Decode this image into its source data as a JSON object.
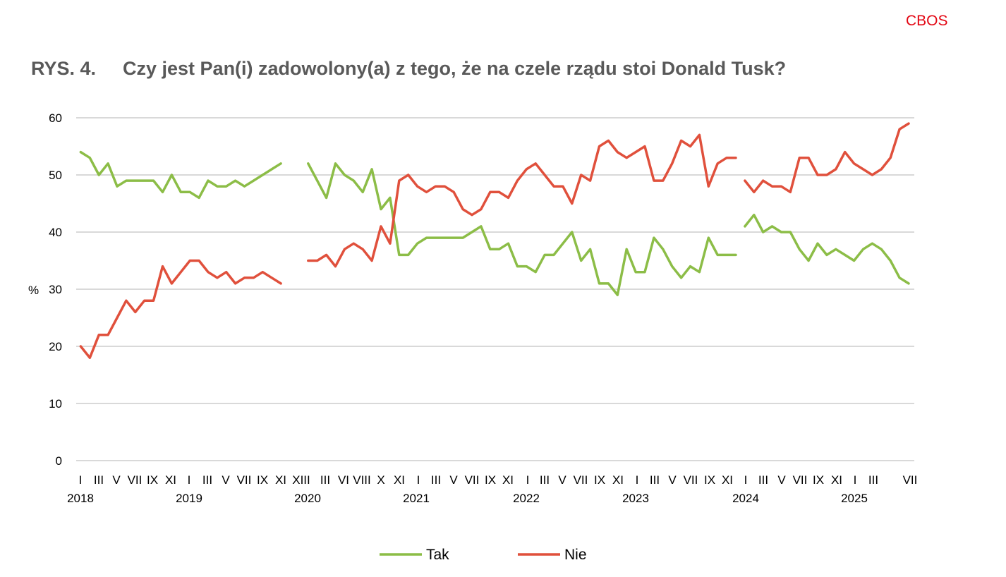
{
  "brand": "CBOS",
  "figure_number": "RYS. 4.",
  "title": "Czy jest Pan(i) zadowolony(a) z tego, że na czele rządu stoi Donald Tusk?",
  "chart_data": {
    "type": "line",
    "title": "Czy jest Pan(i) zadowolony(a) z tego, że na czele rządu stoi Donald Tusk?",
    "ylabel": "%",
    "xlabel": "",
    "ylim": [
      0,
      60
    ],
    "yticks": [
      0,
      10,
      20,
      30,
      40,
      50,
      60
    ],
    "grid": "horizontal",
    "legend_position": "bottom",
    "month_labels": [
      "I",
      "III",
      "V",
      "VII",
      "IX",
      "XI",
      "I",
      "III",
      "V",
      "VII",
      "IX",
      "XI",
      "XIII",
      "III",
      "VI",
      "VIII",
      "X",
      "XI",
      "I",
      "III",
      "V",
      "VII",
      "IX",
      "XI",
      "I",
      "III",
      "V",
      "VII",
      "IX",
      "XI",
      "I",
      "III",
      "V",
      "VII",
      "IX",
      "XI",
      "I",
      "III",
      "V",
      "VII",
      "IX",
      "XI",
      "I",
      "III",
      "VII"
    ],
    "year_labels": [
      "2018",
      "2019",
      "2020",
      "2021",
      "2022",
      "2023",
      "2024",
      "2025"
    ],
    "colors": {
      "Tak": "#8cbd47",
      "Nie": "#e0503c"
    },
    "series": [
      {
        "name": "Tak",
        "segments": [
          [
            54,
            53,
            50,
            52,
            48,
            49,
            49,
            49,
            49,
            47,
            50,
            47,
            47,
            46,
            49,
            48,
            48,
            49,
            48,
            49,
            50,
            51,
            52
          ],
          [
            52,
            49,
            46,
            52,
            50,
            49,
            47,
            51,
            44,
            46,
            36,
            36,
            38,
            39,
            39,
            39,
            39,
            39,
            40,
            41,
            37,
            37,
            38,
            34,
            34,
            33,
            36,
            36,
            38,
            40,
            35,
            37,
            31,
            31,
            29,
            37,
            33,
            33,
            39,
            37,
            34,
            32,
            34,
            33,
            39,
            36,
            36,
            36
          ],
          [
            41,
            43,
            40,
            41,
            40,
            40,
            37,
            35,
            38,
            36,
            37,
            36,
            35,
            37,
            38,
            37,
            35,
            32,
            31
          ]
        ]
      },
      {
        "name": "Nie",
        "segments": [
          [
            20,
            18,
            22,
            22,
            25,
            28,
            26,
            28,
            28,
            34,
            31,
            33,
            35,
            35,
            33,
            32,
            33,
            31,
            32,
            32,
            33,
            32,
            31
          ],
          [
            35,
            35,
            36,
            34,
            37,
            38,
            37,
            35,
            41,
            38,
            49,
            50,
            48,
            47,
            48,
            48,
            47,
            44,
            43,
            44,
            47,
            47,
            46,
            49,
            51,
            52,
            50,
            48,
            48,
            45,
            50,
            49,
            55,
            56,
            54,
            53,
            54,
            55,
            49,
            49,
            52,
            56,
            55,
            57,
            48,
            52,
            53,
            53
          ],
          [
            49,
            47,
            49,
            48,
            48,
            47,
            53,
            53,
            50,
            50,
            51,
            54,
            52,
            51,
            50,
            51,
            53,
            58,
            59
          ]
        ]
      }
    ]
  }
}
